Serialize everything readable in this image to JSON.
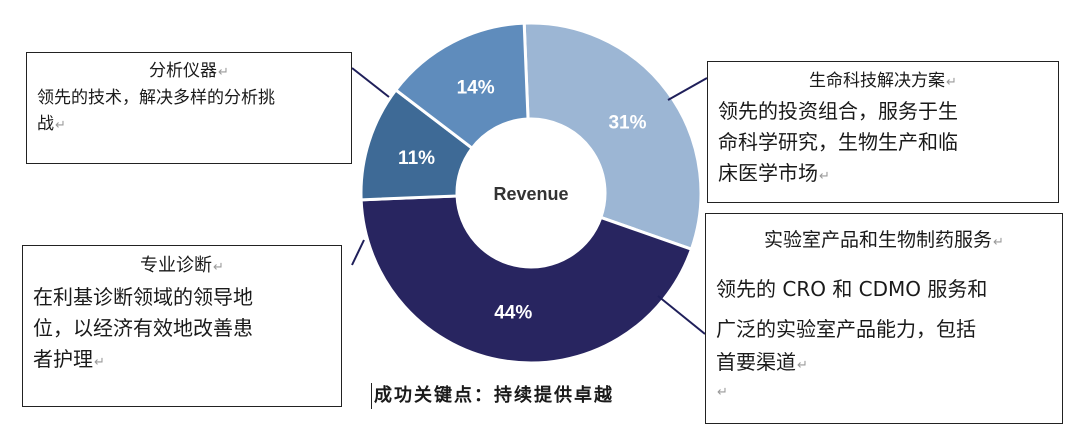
{
  "chart_data": {
    "type": "pie",
    "center_label": "Revenue",
    "slices": [
      {
        "label": "31%",
        "value": 31,
        "color": "#9cb6d4"
      },
      {
        "label": "44%",
        "value": 44,
        "color": "#282560"
      },
      {
        "label": "11%",
        "value": 11,
        "color": "#3e6a96"
      },
      {
        "label": "14%",
        "value": 14,
        "color": "#5f8cbc"
      }
    ]
  },
  "callouts": {
    "analytical": {
      "title": "分析仪器",
      "mark": "↵",
      "body_lines": [
        "领先的技术，解决多样的分析挑",
        "战"
      ],
      "last_mark": "↵"
    },
    "diagnostics": {
      "title": "专业诊断",
      "mark": "↵",
      "body_lines": [
        "在利基诊断领域的领导地",
        "位，以经济有效地改善患",
        "者护理"
      ],
      "last_mark": "↵"
    },
    "lifesci": {
      "title": "生命科技解决方案",
      "mark": "↵",
      "body_lines": [
        "领先的投资组合，服务于生",
        "命科学研究，生物生产和临",
        "床医学市场"
      ],
      "last_mark": "↵"
    },
    "lab": {
      "title": "实验室产品和生物制药服务",
      "mark": "↵",
      "body_line1": "领先的 CRO 和 CDMO 服务和",
      "body_lines": [
        "广泛的实验室产品能力，包括",
        "首要渠道"
      ],
      "last_mark": "↵",
      "empty_mark": "↵"
    }
  },
  "footer": {
    "text": "成功关键点：持续提供卓越"
  }
}
